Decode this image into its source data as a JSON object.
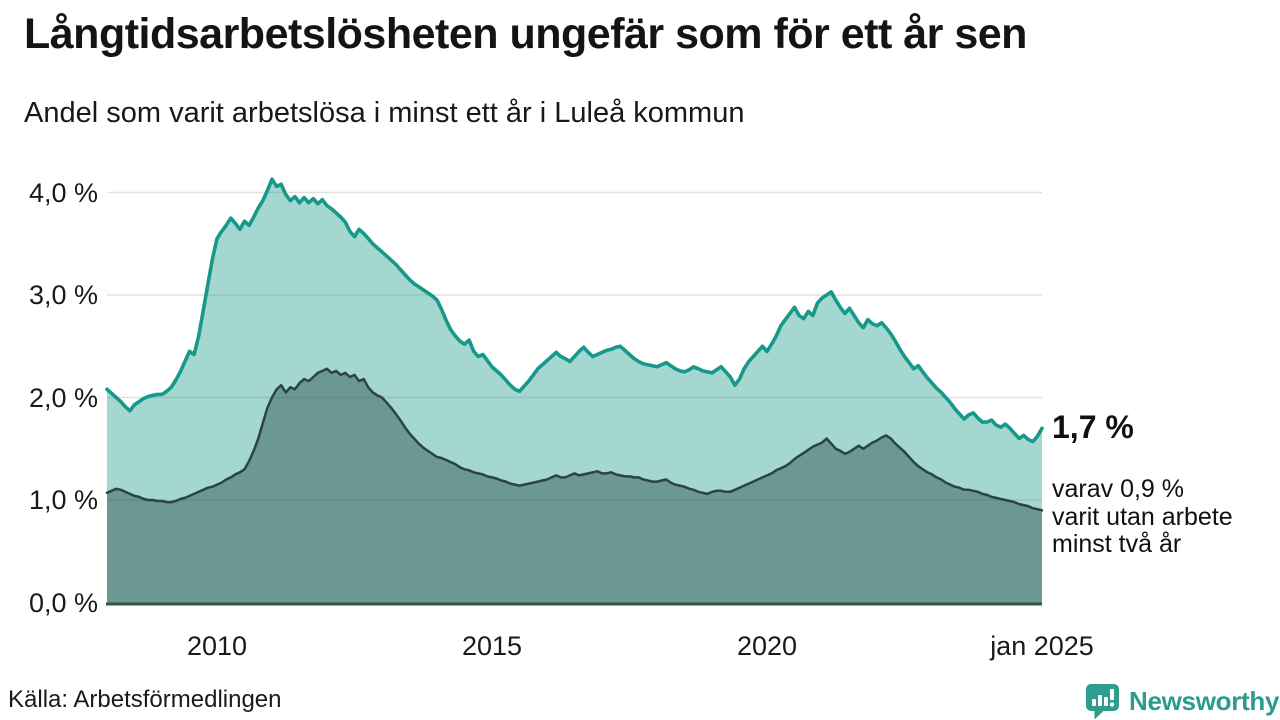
{
  "header": {
    "title": "Långtidsarbetslösheten ungefär som för ett år sen",
    "subtitle": "Andel som varit arbetslösa i minst ett år i Luleå kommun"
  },
  "chart_data": {
    "type": "area",
    "title": "Långtidsarbetslösheten ungefär som för ett år sen",
    "subtitle": "Andel som varit arbetslösa i minst ett år i Luleå kommun",
    "unit": "%",
    "grid": true,
    "x_axis": {
      "range": [
        2008.0,
        2025.0
      ],
      "ticks": [
        {
          "label": "2010",
          "t": 2010
        },
        {
          "label": "2015",
          "t": 2015
        },
        {
          "label": "2020",
          "t": 2020
        },
        {
          "label": "jan 2025",
          "t": 2025
        }
      ]
    },
    "y_axis": {
      "range": [
        0,
        4.3
      ],
      "ticks": [
        {
          "label": "0,0 %",
          "v": 0
        },
        {
          "label": "1,0 %",
          "v": 1
        },
        {
          "label": "2,0 %",
          "v": 2
        },
        {
          "label": "3,0 %",
          "v": 3
        },
        {
          "label": "4,0 %",
          "v": 4
        }
      ]
    },
    "x_start": 2008.0,
    "points_per_year": 12,
    "series": [
      {
        "name": "arbetslösa minst ett år",
        "line_color": "#16988A",
        "fill_color": "rgba(31,155,140,0.40)",
        "latest_value": 1.7,
        "values": [
          2.08,
          2.04,
          2.0,
          1.96,
          1.91,
          1.87,
          1.93,
          1.96,
          1.99,
          2.01,
          2.02,
          2.03,
          2.03,
          2.06,
          2.1,
          2.17,
          2.25,
          2.35,
          2.45,
          2.42,
          2.6,
          2.85,
          3.1,
          3.35,
          3.55,
          3.62,
          3.68,
          3.75,
          3.7,
          3.64,
          3.72,
          3.68,
          3.76,
          3.85,
          3.92,
          4.02,
          4.13,
          4.06,
          4.08,
          3.98,
          3.92,
          3.96,
          3.9,
          3.95,
          3.9,
          3.94,
          3.89,
          3.93,
          3.87,
          3.84,
          3.8,
          3.76,
          3.71,
          3.62,
          3.57,
          3.64,
          3.6,
          3.55,
          3.5,
          3.46,
          3.42,
          3.38,
          3.34,
          3.3,
          3.25,
          3.2,
          3.15,
          3.11,
          3.08,
          3.05,
          3.02,
          2.99,
          2.95,
          2.86,
          2.75,
          2.66,
          2.6,
          2.55,
          2.52,
          2.56,
          2.45,
          2.4,
          2.42,
          2.36,
          2.3,
          2.26,
          2.22,
          2.17,
          2.12,
          2.08,
          2.06,
          2.11,
          2.16,
          2.22,
          2.28,
          2.32,
          2.36,
          2.4,
          2.44,
          2.4,
          2.38,
          2.35,
          2.4,
          2.45,
          2.49,
          2.44,
          2.4,
          2.42,
          2.44,
          2.46,
          2.47,
          2.49,
          2.5,
          2.46,
          2.42,
          2.38,
          2.35,
          2.33,
          2.32,
          2.31,
          2.3,
          2.32,
          2.34,
          2.31,
          2.28,
          2.26,
          2.25,
          2.27,
          2.3,
          2.28,
          2.26,
          2.25,
          2.24,
          2.27,
          2.3,
          2.25,
          2.2,
          2.12,
          2.18,
          2.28,
          2.35,
          2.4,
          2.45,
          2.5,
          2.45,
          2.52,
          2.6,
          2.7,
          2.76,
          2.82,
          2.88,
          2.8,
          2.77,
          2.84,
          2.8,
          2.92,
          2.97,
          3.0,
          3.03,
          2.95,
          2.88,
          2.82,
          2.87,
          2.8,
          2.73,
          2.68,
          2.76,
          2.72,
          2.7,
          2.73,
          2.68,
          2.62,
          2.55,
          2.47,
          2.4,
          2.34,
          2.28,
          2.31,
          2.25,
          2.19,
          2.14,
          2.09,
          2.05,
          2.0,
          1.95,
          1.89,
          1.84,
          1.79,
          1.83,
          1.85,
          1.8,
          1.76,
          1.76,
          1.78,
          1.73,
          1.71,
          1.74,
          1.7,
          1.65,
          1.6,
          1.63,
          1.59,
          1.57,
          1.62,
          1.7
        ]
      },
      {
        "name": "arbetslösa minst två år",
        "line_color": "#2C443F",
        "fill_color": "rgba(40,78,72,0.46)",
        "latest_value": 0.9,
        "values": [
          1.07,
          1.09,
          1.11,
          1.1,
          1.08,
          1.06,
          1.04,
          1.03,
          1.01,
          1.0,
          1.0,
          0.99,
          0.99,
          0.98,
          0.98,
          0.99,
          1.01,
          1.02,
          1.04,
          1.06,
          1.08,
          1.1,
          1.12,
          1.13,
          1.15,
          1.17,
          1.2,
          1.22,
          1.25,
          1.27,
          1.3,
          1.38,
          1.48,
          1.6,
          1.75,
          1.9,
          2.0,
          2.08,
          2.12,
          2.05,
          2.1,
          2.08,
          2.14,
          2.18,
          2.16,
          2.2,
          2.24,
          2.26,
          2.28,
          2.24,
          2.26,
          2.22,
          2.24,
          2.2,
          2.22,
          2.16,
          2.18,
          2.1,
          2.05,
          2.02,
          2.0,
          1.95,
          1.9,
          1.84,
          1.78,
          1.71,
          1.65,
          1.6,
          1.55,
          1.51,
          1.48,
          1.45,
          1.42,
          1.41,
          1.39,
          1.37,
          1.35,
          1.32,
          1.3,
          1.29,
          1.27,
          1.26,
          1.25,
          1.23,
          1.22,
          1.21,
          1.19,
          1.18,
          1.16,
          1.15,
          1.14,
          1.15,
          1.16,
          1.17,
          1.18,
          1.19,
          1.2,
          1.22,
          1.24,
          1.22,
          1.22,
          1.24,
          1.26,
          1.24,
          1.25,
          1.26,
          1.27,
          1.28,
          1.26,
          1.26,
          1.27,
          1.25,
          1.24,
          1.23,
          1.23,
          1.22,
          1.22,
          1.2,
          1.19,
          1.18,
          1.18,
          1.19,
          1.2,
          1.17,
          1.15,
          1.14,
          1.13,
          1.11,
          1.1,
          1.08,
          1.07,
          1.06,
          1.08,
          1.09,
          1.09,
          1.08,
          1.08,
          1.1,
          1.12,
          1.14,
          1.16,
          1.18,
          1.2,
          1.22,
          1.24,
          1.26,
          1.29,
          1.31,
          1.33,
          1.36,
          1.4,
          1.43,
          1.46,
          1.49,
          1.52,
          1.54,
          1.56,
          1.6,
          1.55,
          1.5,
          1.48,
          1.45,
          1.47,
          1.5,
          1.53,
          1.5,
          1.53,
          1.56,
          1.58,
          1.61,
          1.63,
          1.6,
          1.55,
          1.51,
          1.47,
          1.42,
          1.37,
          1.33,
          1.3,
          1.27,
          1.25,
          1.22,
          1.2,
          1.17,
          1.15,
          1.13,
          1.12,
          1.1,
          1.1,
          1.09,
          1.08,
          1.06,
          1.05,
          1.03,
          1.02,
          1.01,
          1.0,
          0.99,
          0.98,
          0.96,
          0.95,
          0.94,
          0.92,
          0.91,
          0.9
        ]
      }
    ],
    "annotations": {
      "latest_value": "1,7 %",
      "detail_lines": [
        "varav 0,9 %",
        "varit utan arbete",
        "minst två år"
      ]
    },
    "legend_position": "none"
  },
  "footer": {
    "source": "Källa: Arbetsförmedlingen",
    "brand": "Newsworthy"
  },
  "colors": {
    "grid": "#E1E1E1",
    "axis": "#3A524C",
    "text": "#1a1a1a",
    "brand_teal": "#2E9C8E"
  }
}
